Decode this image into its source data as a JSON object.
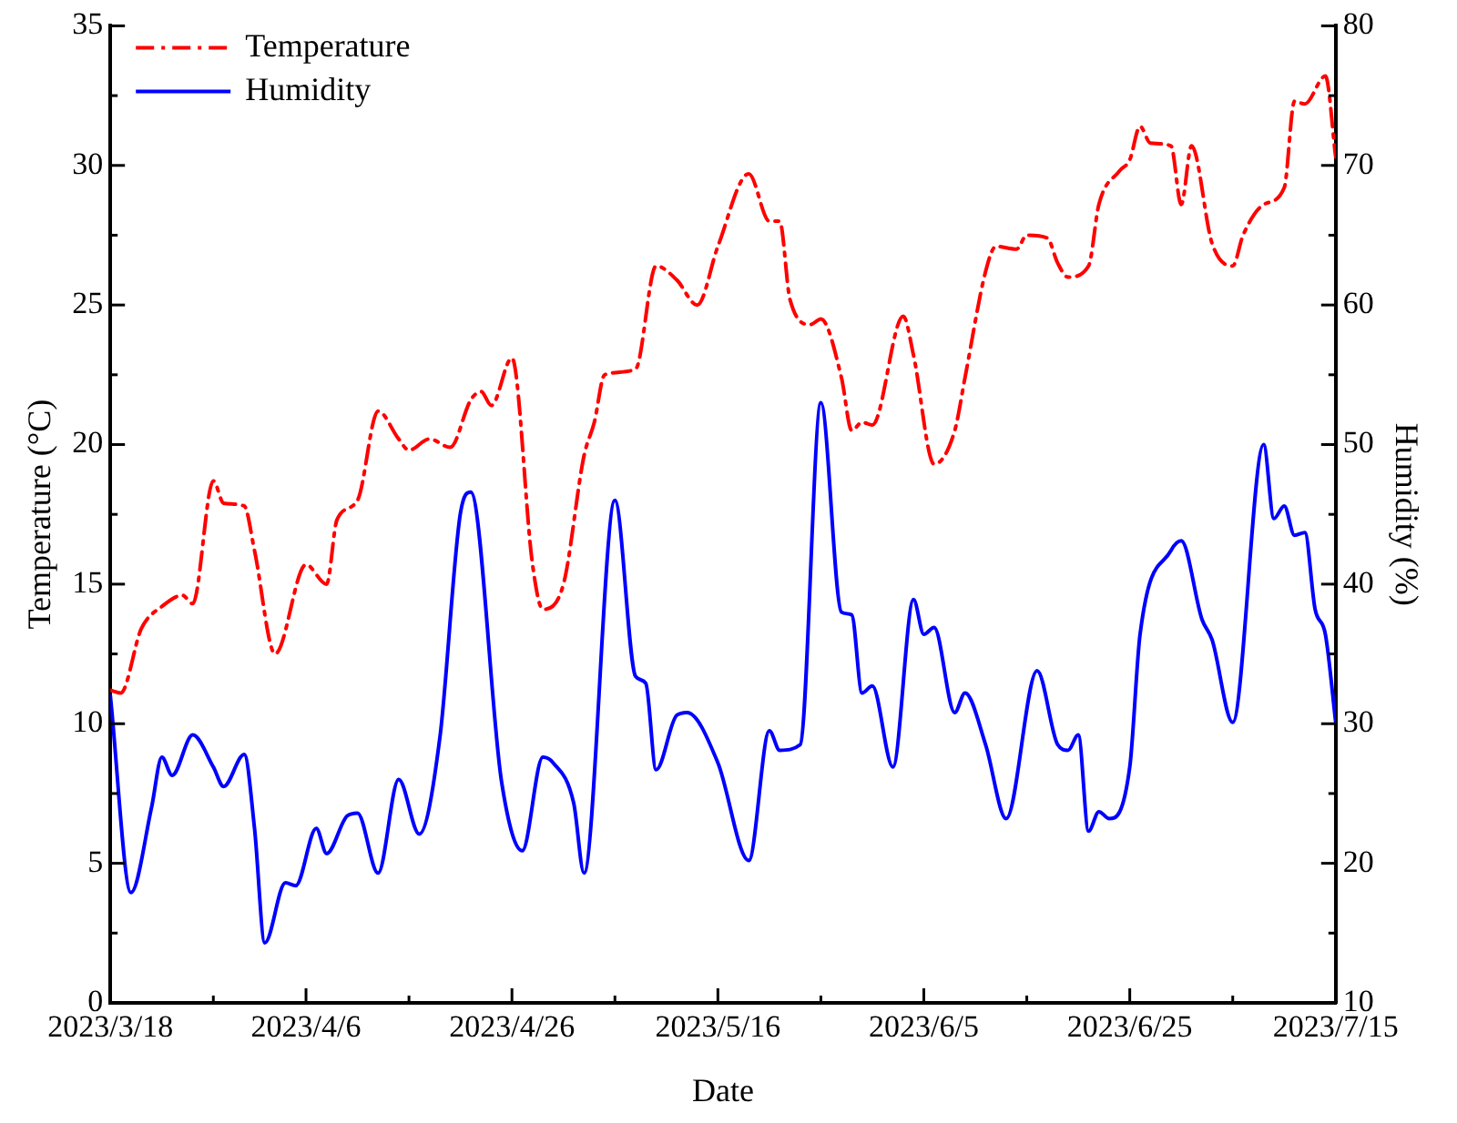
{
  "chart_data": {
    "type": "line",
    "xlabel": "Date",
    "ylabel": "Temperature (°C)",
    "y2label": "Humidity (%)",
    "xlim": [
      "2023-03-18",
      "2023-07-15"
    ],
    "xticks": [
      {
        "value": "2023-03-18",
        "label": "2023/3/18"
      },
      {
        "value": "2023-03-28",
        "label": null
      },
      {
        "value": "2023-04-06",
        "label": "2023/4/6"
      },
      {
        "value": "2023-04-16",
        "label": null
      },
      {
        "value": "2023-04-26",
        "label": "2023/4/26"
      },
      {
        "value": "2023-05-06",
        "label": null
      },
      {
        "value": "2023-05-16",
        "label": "2023/5/16"
      },
      {
        "value": "2023-05-26",
        "label": null
      },
      {
        "value": "2023-06-05",
        "label": "2023/6/5"
      },
      {
        "value": "2023-06-15",
        "label": null
      },
      {
        "value": "2023-06-25",
        "label": "2023/6/25"
      },
      {
        "value": "2023-07-05",
        "label": null
      },
      {
        "value": "2023-07-15",
        "label": "2023/7/15"
      }
    ],
    "ylim": [
      0,
      35
    ],
    "yticks": [
      0,
      {
        "value": 2.5,
        "label": null
      },
      5,
      {
        "value": 7.5,
        "label": null
      },
      10,
      {
        "value": 12.5,
        "label": null
      },
      15,
      {
        "value": 17.5,
        "label": null
      },
      20,
      {
        "value": 22.5,
        "label": null
      },
      25,
      {
        "value": 27.5,
        "label": null
      },
      30,
      {
        "value": 32.5,
        "label": null
      },
      35
    ],
    "y2lim": [
      10,
      80
    ],
    "y2ticks": [
      10,
      {
        "value": 15,
        "label": null
      },
      20,
      {
        "value": 25,
        "label": null
      },
      30,
      {
        "value": 35,
        "label": null
      },
      40,
      {
        "value": 45,
        "label": null
      },
      50,
      {
        "value": 55,
        "label": null
      },
      60,
      {
        "value": 65,
        "label": null
      },
      70,
      {
        "value": 75,
        "label": null
      },
      80
    ],
    "grid": false,
    "legend": "top left",
    "marker": "none",
    "series": [
      {
        "name": "Temperature",
        "color": "#ff0000",
        "line_style": "dashed",
        "x": [
          "2023-03-18",
          "2023-03-19",
          "2023-03-21",
          "2023-03-23",
          "2023-03-25",
          "2023-03-26",
          "2023-03-28",
          "2023-03-29",
          "2023-03-31",
          "2023-04-01",
          "2023-04-03",
          "2023-04-06",
          "2023-04-08",
          "2023-04-09",
          "2023-04-11",
          "2023-04-13",
          "2023-04-15",
          "2023-04-16",
          "2023-04-18",
          "2023-04-20",
          "2023-04-22",
          "2023-04-23",
          "2023-04-24",
          "2023-04-26",
          "2023-04-28",
          "2023-04-29",
          "2023-05-01",
          "2023-05-03",
          "2023-05-04",
          "2023-05-05",
          "2023-05-08",
          "2023-05-10",
          "2023-05-12",
          "2023-05-14",
          "2023-05-16",
          "2023-05-19",
          "2023-05-21",
          "2023-05-22",
          "2023-05-23",
          "2023-05-25",
          "2023-05-26",
          "2023-05-28",
          "2023-05-29",
          "2023-05-30",
          "2023-05-31",
          "2023-06-03",
          "2023-06-04",
          "2023-06-06",
          "2023-06-08",
          "2023-06-09",
          "2023-06-11",
          "2023-06-12",
          "2023-06-14",
          "2023-06-15",
          "2023-06-17",
          "2023-06-18",
          "2023-06-19",
          "2023-06-21",
          "2023-06-22",
          "2023-06-24",
          "2023-06-25",
          "2023-06-26",
          "2023-06-27",
          "2023-06-29",
          "2023-06-30",
          "2023-07-01",
          "2023-07-03",
          "2023-07-05",
          "2023-07-06",
          "2023-07-08",
          "2023-07-10",
          "2023-07-11",
          "2023-07-12",
          "2023-07-14",
          "2023-07-15"
        ],
        "values": [
          11.2,
          11.1,
          13.4,
          14.2,
          14.6,
          14.3,
          18.7,
          17.9,
          17.8,
          16.2,
          12.5,
          15.7,
          15.0,
          17.3,
          18.0,
          21.2,
          20.2,
          19.8,
          20.2,
          19.9,
          21.6,
          21.9,
          21.4,
          23.1,
          15.7,
          14.1,
          15.0,
          19.6,
          20.8,
          22.5,
          22.7,
          26.4,
          25.9,
          25.0,
          27.1,
          29.7,
          28.0,
          28.0,
          25.2,
          24.3,
          24.5,
          22.4,
          20.5,
          20.8,
          20.7,
          24.6,
          23.2,
          19.3,
          20.5,
          22.4,
          26.2,
          27.1,
          27.0,
          27.5,
          27.4,
          26.5,
          26.0,
          26.4,
          28.6,
          29.8,
          30.2,
          31.4,
          30.8,
          30.7,
          28.6,
          30.7,
          27.2,
          26.4,
          27.5,
          28.6,
          29.2,
          32.3,
          32.2,
          33.2,
          30.3
        ]
      },
      {
        "name": "Humidity",
        "color": "#0000ff",
        "line_style": "solid",
        "axis": "y2",
        "x": [
          "2023-03-18",
          "2023-03-20",
          "2023-03-22",
          "2023-03-23",
          "2023-03-24",
          "2023-03-26",
          "2023-03-28",
          "2023-03-29",
          "2023-03-31",
          "2023-04-01",
          "2023-04-02",
          "2023-04-04",
          "2023-04-05",
          "2023-04-07",
          "2023-04-08",
          "2023-04-10",
          "2023-04-11",
          "2023-04-13",
          "2023-04-15",
          "2023-04-17",
          "2023-04-19",
          "2023-04-21",
          "2023-04-22",
          "2023-04-25",
          "2023-04-27",
          "2023-04-29",
          "2023-04-30",
          "2023-05-02",
          "2023-05-03",
          "2023-05-06",
          "2023-05-08",
          "2023-05-09",
          "2023-05-10",
          "2023-05-12",
          "2023-05-13",
          "2023-05-16",
          "2023-05-19",
          "2023-05-21",
          "2023-05-22",
          "2023-05-24",
          "2023-05-26",
          "2023-05-28",
          "2023-05-29",
          "2023-05-30",
          "2023-05-31",
          "2023-06-02",
          "2023-06-04",
          "2023-06-05",
          "2023-06-06",
          "2023-06-08",
          "2023-06-09",
          "2023-06-11",
          "2023-06-13",
          "2023-06-16",
          "2023-06-18",
          "2023-06-19",
          "2023-06-20",
          "2023-06-21",
          "2023-06-22",
          "2023-06-23",
          "2023-06-25",
          "2023-06-26",
          "2023-06-29",
          "2023-06-30",
          "2023-07-02",
          "2023-07-03",
          "2023-07-05",
          "2023-07-08",
          "2023-07-09",
          "2023-07-10",
          "2023-07-11",
          "2023-07-12",
          "2023-07-13",
          "2023-07-14",
          "2023-07-15"
        ],
        "values": [
          32.0,
          17.9,
          24.0,
          27.6,
          26.3,
          29.2,
          26.9,
          25.5,
          27.8,
          22.5,
          14.3,
          18.6,
          18.4,
          22.5,
          20.7,
          23.4,
          23.6,
          19.3,
          26.0,
          22.1,
          29.0,
          45.1,
          46.6,
          25.8,
          20.9,
          27.6,
          27.2,
          24.3,
          19.3,
          46.0,
          33.4,
          32.9,
          26.7,
          30.6,
          30.8,
          27.2,
          20.2,
          29.5,
          28.1,
          28.5,
          53.0,
          38.0,
          37.8,
          32.2,
          32.7,
          26.9,
          38.9,
          36.4,
          36.9,
          30.8,
          32.2,
          28.5,
          23.2,
          33.8,
          28.5,
          28.1,
          29.2,
          22.3,
          23.7,
          23.2,
          26.9,
          36.4,
          42.4,
          43.1,
          37.5,
          36.0,
          30.1,
          50.0,
          44.7,
          45.6,
          43.5,
          43.7,
          38.2,
          36.4,
          30.1
        ]
      }
    ]
  }
}
